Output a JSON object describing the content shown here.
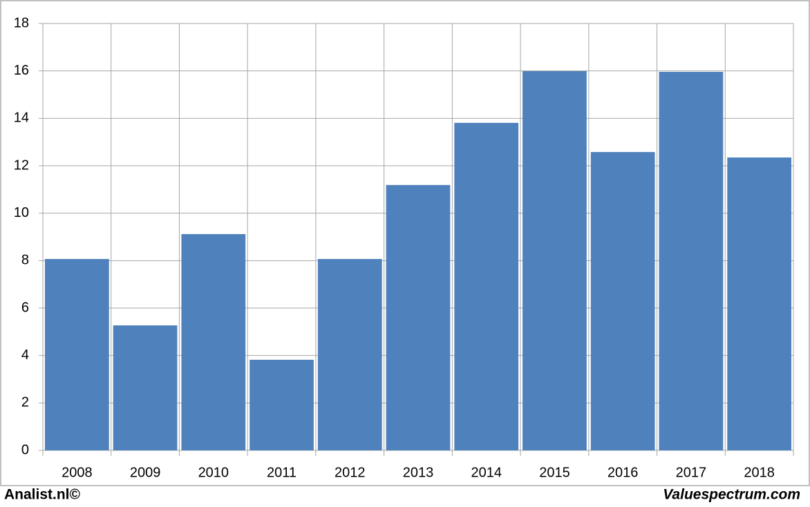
{
  "chart_data": {
    "type": "bar",
    "categories": [
      "2008",
      "2009",
      "2010",
      "2011",
      "2012",
      "2013",
      "2014",
      "2015",
      "2016",
      "2017",
      "2018"
    ],
    "values": [
      8.07,
      5.27,
      9.12,
      3.82,
      8.07,
      11.19,
      13.81,
      15.99,
      12.58,
      15.96,
      12.35
    ],
    "color": "#4f81bd",
    "ylim": [
      0,
      18
    ],
    "yticks": [
      0,
      2,
      4,
      6,
      8,
      10,
      12,
      14,
      16,
      18
    ],
    "grid": true,
    "footer_left": "Analist.nl©",
    "footer_right": "Valuespectrum.com"
  }
}
